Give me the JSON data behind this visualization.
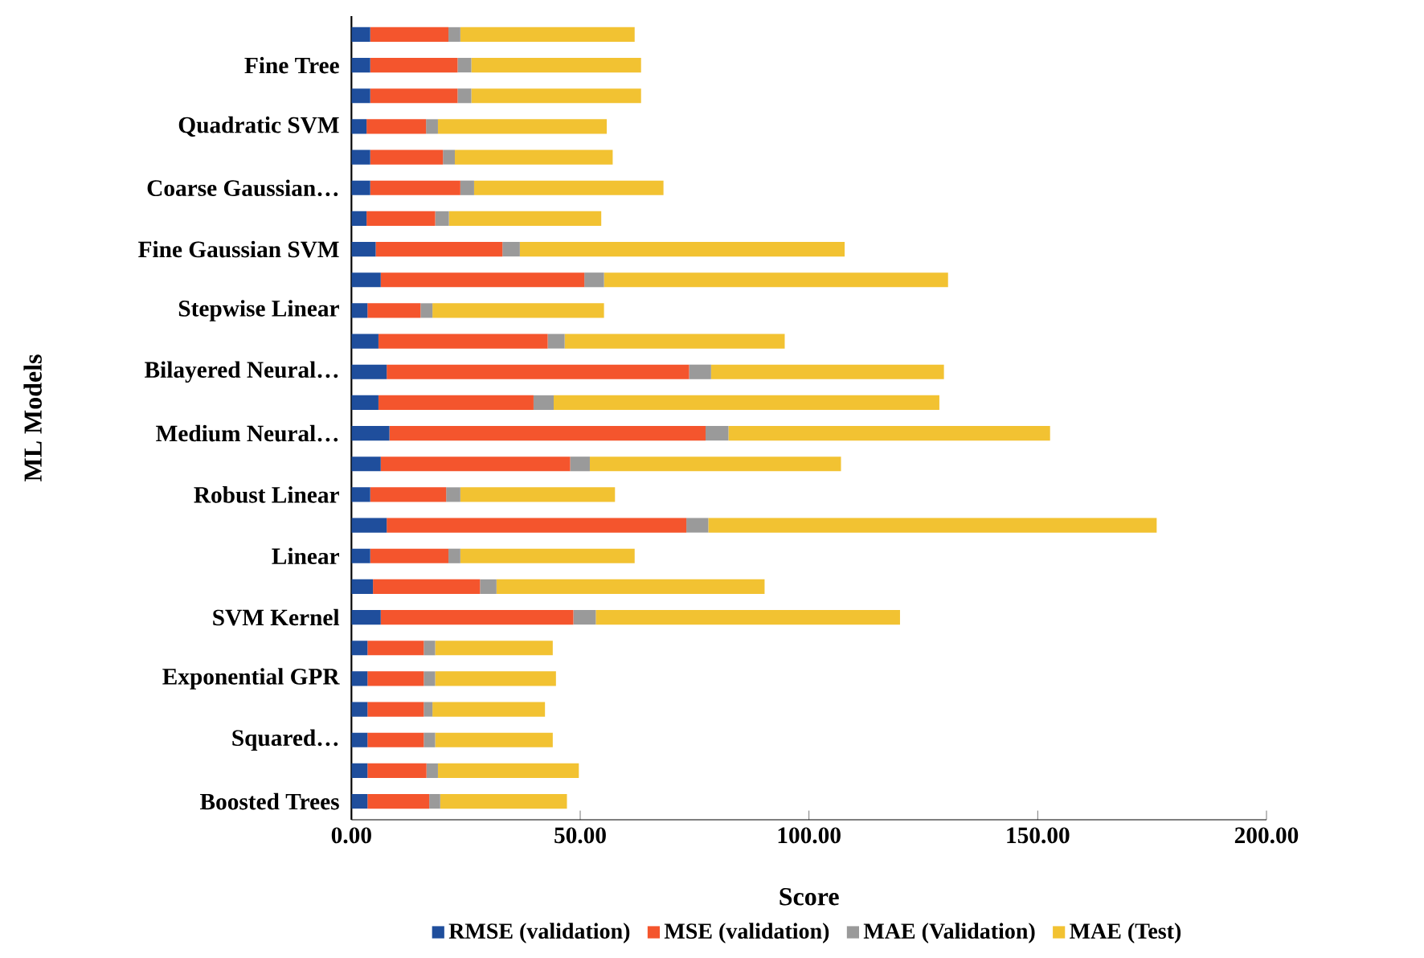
{
  "chart_data": {
    "type": "bar",
    "orientation": "horizontal",
    "stacked": true,
    "xlabel": "Score",
    "ylabel": "ML Models",
    "categories": [
      null,
      "Fine Tree",
      null,
      "Quadratic SVM",
      null,
      "Coarse Gaussian…",
      null,
      "Fine Gaussian SVM",
      null,
      "Stepwise Linear",
      null,
      "Bilayered Neural…",
      null,
      "Medium Neural…",
      null,
      "Robust Linear",
      null,
      "Linear",
      null,
      "SVM Kernel",
      null,
      "Exponential GPR",
      null,
      "Squared…",
      null,
      "Boosted Trees"
    ],
    "series": [
      {
        "name": "RMSE (validation)",
        "color": "#1f4e9c",
        "values": [
          4.1,
          4.1,
          4.1,
          3.3,
          4.1,
          4.1,
          3.3,
          5.3,
          6.4,
          3.5,
          5.9,
          7.7,
          5.9,
          8.3,
          6.4,
          4.1,
          7.7,
          4.1,
          4.7,
          6.4,
          3.5,
          3.5,
          3.5,
          3.5,
          3.5,
          3.5
        ]
      },
      {
        "name": "MSE (validation)",
        "color": "#f4552d",
        "values": [
          17.1,
          19.1,
          19.1,
          13.0,
          15.9,
          19.7,
          15.0,
          27.7,
          44.5,
          11.6,
          37.0,
          66.1,
          33.9,
          69.1,
          41.4,
          16.6,
          65.5,
          17.1,
          23.4,
          42.1,
          12.3,
          12.3,
          12.3,
          12.3,
          12.9,
          13.5
        ]
      },
      {
        "name": "MAE (Validation)",
        "color": "#9a9a9a",
        "values": [
          2.6,
          3.0,
          3.0,
          2.6,
          2.6,
          3.0,
          3.0,
          3.8,
          4.3,
          2.6,
          3.7,
          4.8,
          4.4,
          5.0,
          4.3,
          3.1,
          4.8,
          2.6,
          3.6,
          4.9,
          2.5,
          2.5,
          1.9,
          2.5,
          2.5,
          2.4
        ]
      },
      {
        "name": "MAE (Test)",
        "color": "#f2c232",
        "values": [
          38.1,
          37.1,
          37.1,
          36.9,
          34.5,
          41.4,
          33.3,
          71.0,
          75.2,
          37.5,
          48.1,
          50.9,
          84.3,
          70.3,
          54.9,
          33.8,
          98.0,
          38.1,
          58.6,
          66.5,
          25.7,
          26.4,
          24.6,
          25.7,
          30.8,
          27.7
        ]
      }
    ],
    "xlim": [
      0,
      200
    ],
    "xticks": [
      {
        "value": 0,
        "label": "0.00"
      },
      {
        "value": 50,
        "label": "50.00"
      },
      {
        "value": 100,
        "label": "100.00"
      },
      {
        "value": 150,
        "label": "150.00"
      },
      {
        "value": 200,
        "label": "200.00"
      }
    ],
    "grid": false,
    "legend": "bottom"
  }
}
